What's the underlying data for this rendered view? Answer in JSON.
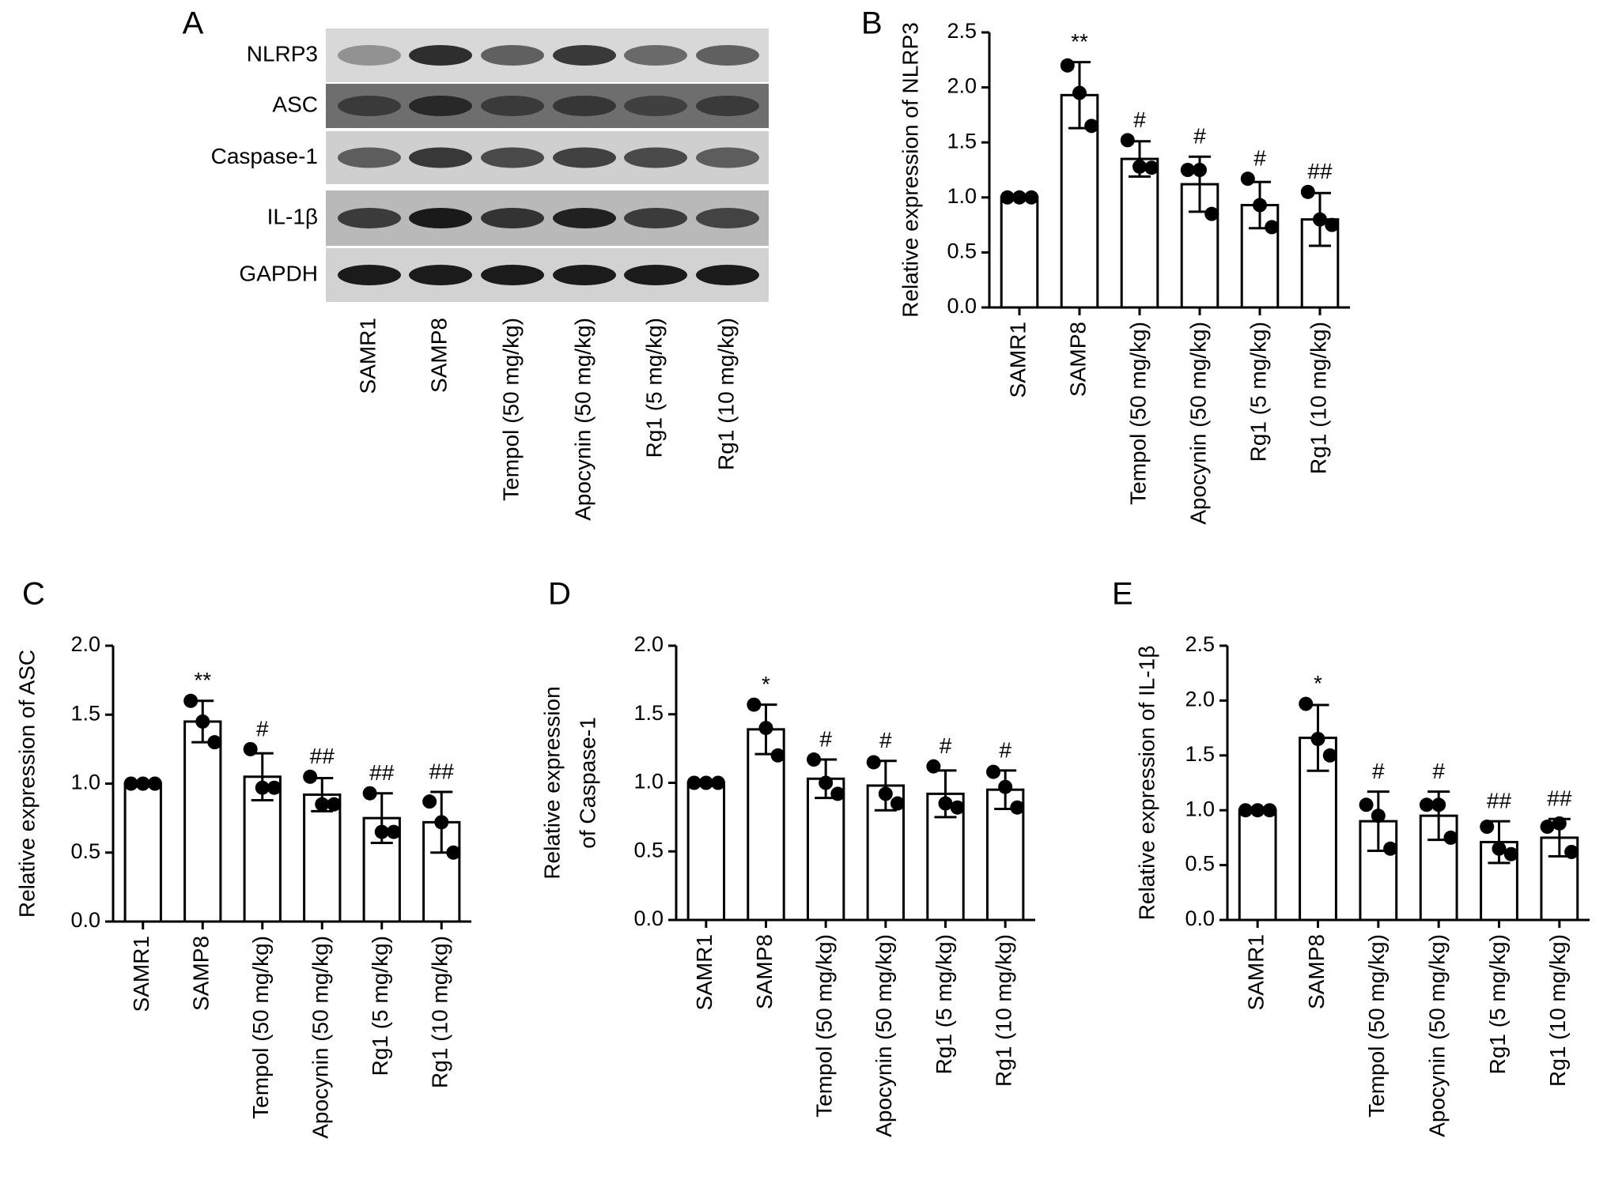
{
  "blot": {
    "label": "A",
    "rows": [
      "NLRP3",
      "ASC",
      "Caspase-1",
      "IL-1β",
      "GAPDH"
    ],
    "lanes": [
      "SAMR1",
      "SAMP8",
      "Tempol (50 mg/kg)",
      "Apocynin (50 mg/kg)",
      "Rg1 (5 mg/kg)",
      "Rg1 (10 mg/kg)"
    ]
  },
  "chart_data": [
    {
      "type": "bar",
      "label": "B",
      "ylabel": "Relative expression of NLRP3",
      "categories": [
        "SAMR1",
        "SAMP8",
        "Tempol (50 mg/kg)",
        "Apocynin (50 mg/kg)",
        "Rg1 (5 mg/kg)",
        "Rg1 (10 mg/kg)"
      ],
      "values": [
        1.0,
        1.93,
        1.35,
        1.12,
        0.93,
        0.8
      ],
      "errors": [
        0.01,
        0.3,
        0.16,
        0.25,
        0.21,
        0.24
      ],
      "points": [
        [
          1,
          1,
          1
        ],
        [
          2.2,
          1.95,
          1.65
        ],
        [
          1.52,
          1.28,
          1.27
        ],
        [
          1.25,
          1.25,
          0.85
        ],
        [
          1.17,
          0.93,
          0.73
        ],
        [
          1.05,
          0.8,
          0.75
        ]
      ],
      "annotations": [
        null,
        "**",
        "#",
        "#",
        "#",
        "##"
      ],
      "ylim": [
        0,
        2.5
      ],
      "yticks": [
        {
          "value": 0,
          "label": "0.0"
        },
        0.5,
        {
          "value": 1,
          "label": "1.0"
        },
        1.5,
        {
          "value": 2,
          "label": "2.0"
        },
        2.5
      ],
      "color": "#ffffff"
    },
    {
      "type": "bar",
      "label": "C",
      "ylabel": "Relative expression of ASC",
      "categories": [
        "SAMR1",
        "SAMP8",
        "Tempol (50 mg/kg)",
        "Apocynin (50 mg/kg)",
        "Rg1 (5 mg/kg)",
        "Rg1 (10 mg/kg)"
      ],
      "values": [
        1.0,
        1.45,
        1.05,
        0.92,
        0.75,
        0.72
      ],
      "errors": [
        0.01,
        0.15,
        0.17,
        0.12,
        0.18,
        0.22
      ],
      "points": [
        [
          1,
          1,
          1
        ],
        [
          1.6,
          1.45,
          1.3
        ],
        [
          1.25,
          0.97,
          0.97
        ],
        [
          1.05,
          0.85,
          0.85
        ],
        [
          0.93,
          0.65,
          0.65
        ],
        [
          0.87,
          0.72,
          0.5
        ]
      ],
      "annotations": [
        null,
        "**",
        "#",
        "##",
        "##",
        "##"
      ],
      "ylim": [
        0,
        2
      ],
      "yticks": [
        {
          "value": 0,
          "label": "0.0"
        },
        0.5,
        {
          "value": 1,
          "label": "1.0"
        },
        1.5,
        {
          "value": 2,
          "label": "2.0"
        }
      ],
      "color": "#ffffff"
    },
    {
      "type": "bar",
      "label": "D",
      "ylabel": [
        "Relative expression",
        "of Caspase-1"
      ],
      "categories": [
        "SAMR1",
        "SAMP8",
        "Tempol (50 mg/kg)",
        "Apocynin (50 mg/kg)",
        "Rg1 (5 mg/kg)",
        "Rg1 (10 mg/kg)"
      ],
      "values": [
        1.0,
        1.39,
        1.03,
        0.98,
        0.92,
        0.95
      ],
      "errors": [
        0.01,
        0.18,
        0.14,
        0.18,
        0.17,
        0.14
      ],
      "points": [
        [
          1,
          1,
          1
        ],
        [
          1.57,
          1.4,
          1.2
        ],
        [
          1.17,
          1.0,
          0.92
        ],
        [
          1.15,
          0.92,
          0.85
        ],
        [
          1.12,
          0.85,
          0.82
        ],
        [
          1.08,
          0.97,
          0.82
        ]
      ],
      "annotations": [
        null,
        "*",
        "#",
        "#",
        "#",
        "#"
      ],
      "ylim": [
        0,
        2
      ],
      "yticks": [
        {
          "value": 0,
          "label": "0.0"
        },
        0.5,
        {
          "value": 1,
          "label": "1.0"
        },
        1.5,
        {
          "value": 2,
          "label": "2.0"
        }
      ],
      "color": "#ffffff"
    },
    {
      "type": "bar",
      "label": "E",
      "ylabel": "Relative expression of IL-1β",
      "categories": [
        "SAMR1",
        "SAMP8",
        "Tempol (50 mg/kg)",
        "Apocynin (50 mg/kg)",
        "Rg1 (5 mg/kg)",
        "Rg1 (10 mg/kg)"
      ],
      "values": [
        1.0,
        1.66,
        0.9,
        0.95,
        0.71,
        0.75
      ],
      "errors": [
        0.01,
        0.3,
        0.27,
        0.22,
        0.19,
        0.17
      ],
      "points": [
        [
          1,
          1,
          1
        ],
        [
          1.97,
          1.65,
          1.5
        ],
        [
          1.05,
          0.95,
          0.65
        ],
        [
          1.05,
          1.05,
          0.75
        ],
        [
          0.85,
          0.65,
          0.6
        ],
        [
          0.85,
          0.88,
          0.62
        ]
      ],
      "annotations": [
        null,
        "*",
        "#",
        "#",
        "##",
        "##"
      ],
      "ylim": [
        0,
        2.5
      ],
      "yticks": [
        {
          "value": 0,
          "label": "0.0"
        },
        0.5,
        {
          "value": 1,
          "label": "1.0"
        },
        1.5,
        {
          "value": 2,
          "label": "2.0"
        },
        2.5
      ],
      "color": "#ffffff"
    }
  ]
}
